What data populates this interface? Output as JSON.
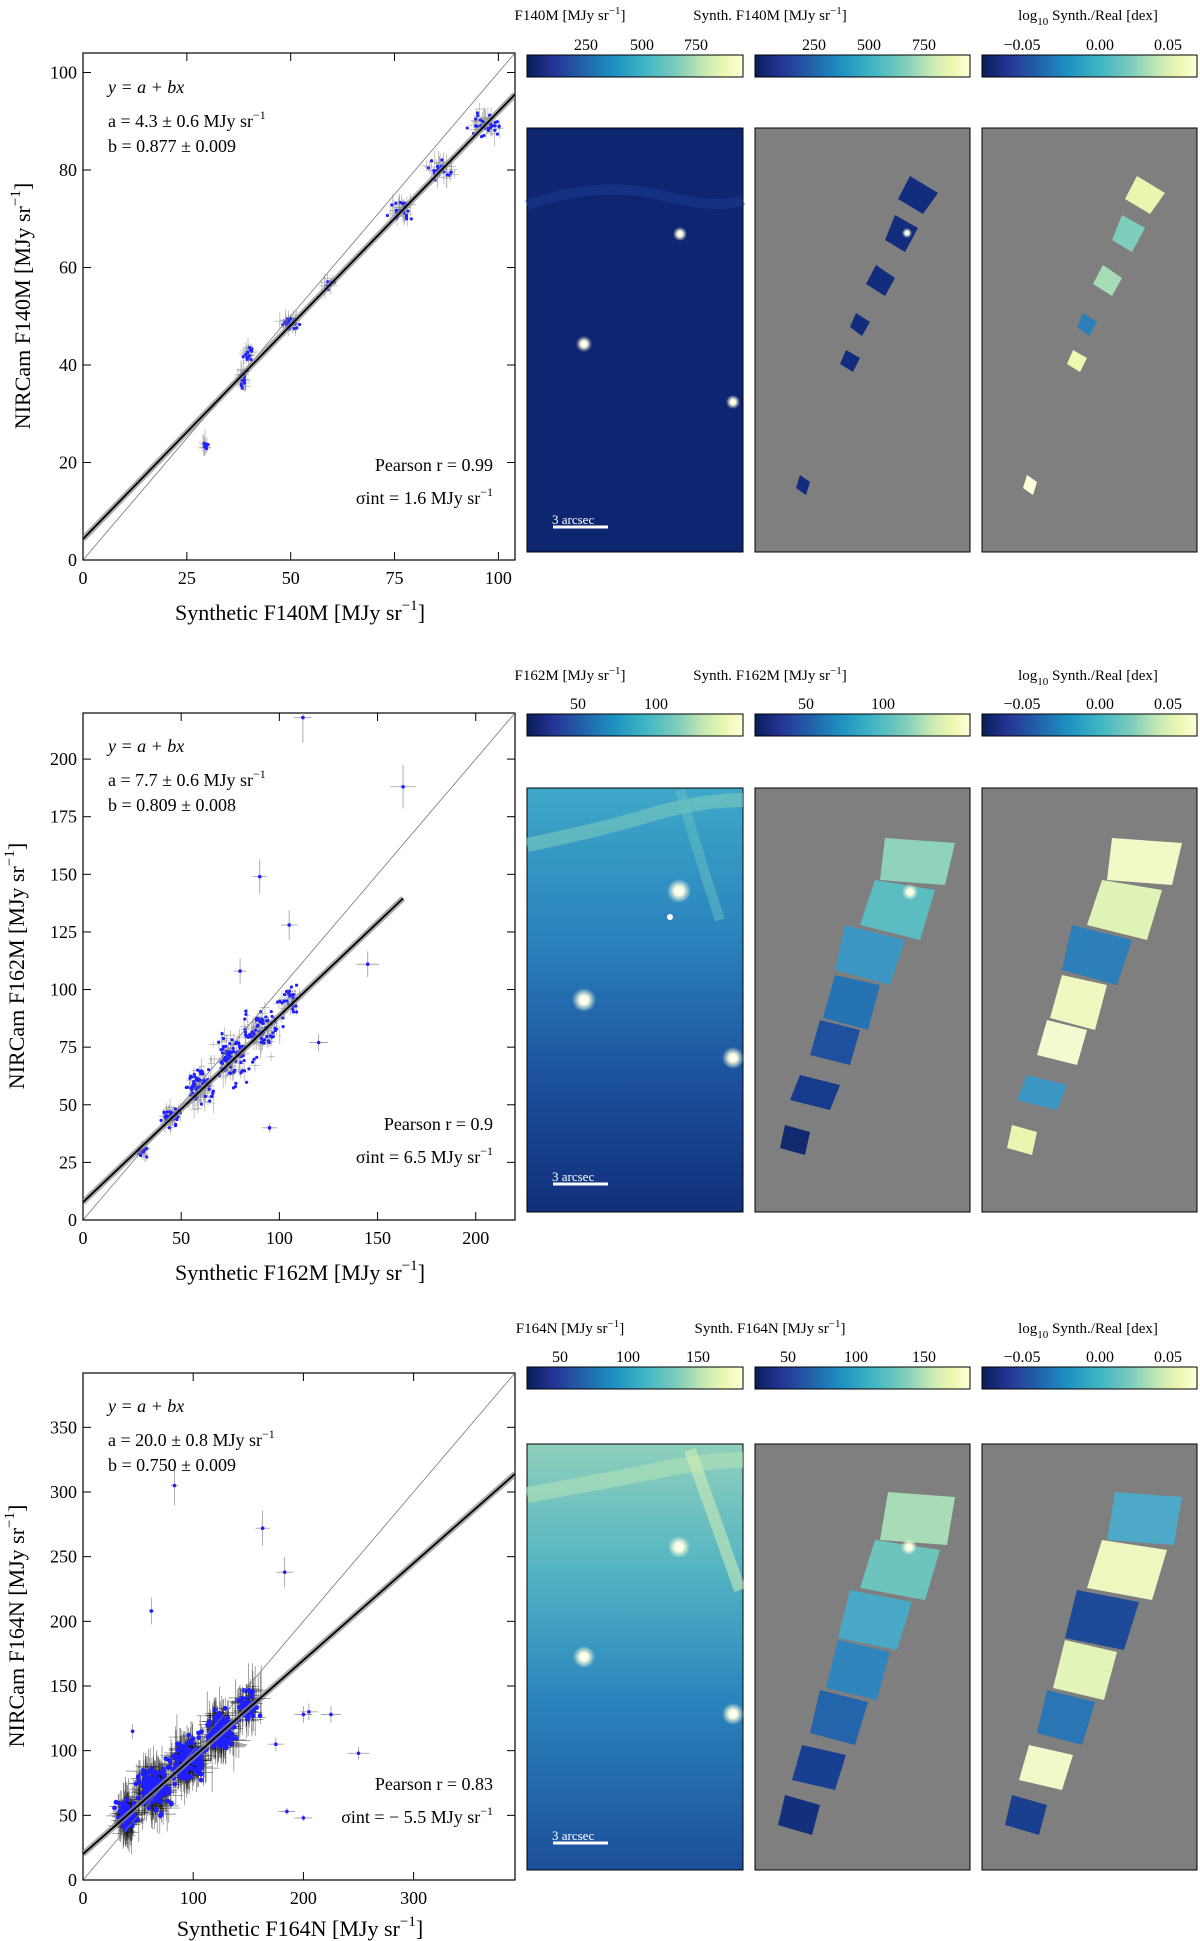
{
  "chart_data": [
    {
      "type": "scatter",
      "filter": "F140M",
      "xlabel": "Synthetic F140M [MJy sr",
      "ylabel": "NIRCam F140M [MJy sr",
      "unit_sup": "−1",
      "xlim": [
        0,
        104
      ],
      "ylim": [
        0,
        104
      ],
      "xticks": [
        0,
        25,
        50,
        75,
        100
      ],
      "yticks": [
        0,
        20,
        40,
        60,
        80,
        100
      ],
      "fit": {
        "model": "y = a + bx",
        "a": 4.3,
        "a_err": 0.6,
        "b": 0.877,
        "b_err": 0.009,
        "a_text": "a = 4.3 ± 0.6 MJy sr",
        "b_text": "b = 0.877 ± 0.009"
      },
      "pearson_r": 0.99,
      "pearson_text": "Pearson r = 0.99",
      "sigma_text": "σint = 1.6 MJy sr",
      "sigma_int": 1.6,
      "clusters": [
        {
          "x": 29.5,
          "y": 23.5,
          "n": 10,
          "sx": 0.6,
          "sy": 0.8
        },
        {
          "x": 38.5,
          "y": 37.0,
          "n": 14,
          "sx": 1.0,
          "sy": 2.0
        },
        {
          "x": 39.5,
          "y": 42.5,
          "n": 14,
          "sx": 1.2,
          "sy": 1.4
        },
        {
          "x": 50.0,
          "y": 48.5,
          "n": 24,
          "sx": 2.0,
          "sy": 1.0
        },
        {
          "x": 59.0,
          "y": 56.5,
          "n": 6,
          "sx": 1.5,
          "sy": 1.0
        },
        {
          "x": 77.0,
          "y": 72.0,
          "n": 22,
          "sx": 3.0,
          "sy": 2.0
        },
        {
          "x": 86.0,
          "y": 80.0,
          "n": 22,
          "sx": 3.0,
          "sy": 2.0
        },
        {
          "x": 97.0,
          "y": 89.5,
          "n": 30,
          "sx": 4.0,
          "sy": 2.5
        }
      ]
    },
    {
      "type": "scatter",
      "filter": "F162M",
      "xlabel": "Synthetic F162M [MJy sr",
      "ylabel": "NIRCam F162M [MJy sr",
      "unit_sup": "−1",
      "xlim": [
        0,
        220
      ],
      "ylim": [
        0,
        220
      ],
      "xticks": [
        0,
        50,
        100,
        150,
        200
      ],
      "yticks": [
        0,
        25,
        50,
        75,
        100,
        125,
        150,
        175,
        200
      ],
      "fit": {
        "model": "y = a + bx",
        "a": 7.7,
        "a_err": 0.6,
        "b": 0.809,
        "b_err": 0.008,
        "a_text": "a = 7.7 ± 0.6 MJy sr",
        "b_text": "b = 0.809 ± 0.008"
      },
      "pearson_r": 0.9,
      "pearson_text": "Pearson r = 0.9",
      "sigma_text": "σint = 6.5 MJy sr",
      "sigma_int": 6.5,
      "clusters": [
        {
          "x": 30,
          "y": 30,
          "n": 12,
          "sx": 3,
          "sy": 2
        },
        {
          "x": 45,
          "y": 45,
          "n": 30,
          "sx": 5,
          "sy": 4
        },
        {
          "x": 60,
          "y": 58,
          "n": 60,
          "sx": 8,
          "sy": 8
        },
        {
          "x": 75,
          "y": 70,
          "n": 80,
          "sx": 9,
          "sy": 10
        },
        {
          "x": 90,
          "y": 82,
          "n": 70,
          "sx": 9,
          "sy": 8
        },
        {
          "x": 105,
          "y": 95,
          "n": 25,
          "sx": 5,
          "sy": 6
        }
      ],
      "outliers": [
        [
          90,
          149
        ],
        [
          105,
          128
        ],
        [
          163,
          188
        ],
        [
          112,
          218
        ],
        [
          145,
          111
        ],
        [
          80,
          108
        ],
        [
          95,
          40
        ],
        [
          120,
          77
        ]
      ]
    },
    {
      "type": "scatter",
      "filter": "F164N",
      "xlabel": "Synthetic F164N [MJy sr",
      "ylabel": "NIRCam F164N [MJy sr",
      "unit_sup": "−1",
      "xlim": [
        0,
        392
      ],
      "ylim": [
        0,
        392
      ],
      "xticks": [
        0,
        100,
        200,
        300
      ],
      "yticks": [
        0,
        50,
        100,
        150,
        200,
        250,
        300,
        350
      ],
      "fit": {
        "model": "y = a + bx",
        "a": 20.0,
        "a_err": 0.8,
        "b": 0.75,
        "b_err": 0.009,
        "a_text": "a = 20.0 ± 0.8 MJy sr",
        "b_text": "b = 0.750 ± 0.009"
      },
      "pearson_r": 0.83,
      "pearson_text": "Pearson r = 0.83",
      "sigma_text": "σint = − 5.5 MJy sr",
      "sigma_int": -5.5,
      "clusters": [
        {
          "x": 40,
          "y": 50,
          "n": 90,
          "sx": 8,
          "sy": 12
        },
        {
          "x": 65,
          "y": 70,
          "n": 150,
          "sx": 14,
          "sy": 16
        },
        {
          "x": 95,
          "y": 92,
          "n": 160,
          "sx": 16,
          "sy": 16
        },
        {
          "x": 125,
          "y": 115,
          "n": 120,
          "sx": 14,
          "sy": 14
        },
        {
          "x": 150,
          "y": 135,
          "n": 50,
          "sx": 10,
          "sy": 12
        }
      ],
      "outliers": [
        [
          83,
          305
        ],
        [
          163,
          272
        ],
        [
          62,
          208
        ],
        [
          183,
          238
        ],
        [
          45,
          115
        ],
        [
          200,
          128
        ],
        [
          225,
          128
        ],
        [
          185,
          53
        ],
        [
          200,
          48
        ],
        [
          250,
          98
        ],
        [
          175,
          105
        ],
        [
          205,
          130
        ]
      ]
    }
  ],
  "maps": [
    {
      "real": {
        "colorbar_label": "F140M [MJy sr",
        "ticks": [
          "250",
          "500",
          "750"
        ]
      },
      "synth": {
        "colorbar_label": "Synth. F140M [MJy sr",
        "ticks": [
          "250",
          "500",
          "750"
        ]
      },
      "ratio": {
        "colorbar_label": "log",
        "colorbar_label_rest": "Synth./Real [dex]",
        "ticks": [
          "−0.05",
          "0.00",
          "0.05"
        ]
      },
      "scalebar": "3 arcsec"
    },
    {
      "real": {
        "colorbar_label": "F162M [MJy sr",
        "ticks": [
          "50",
          "100"
        ]
      },
      "synth": {
        "colorbar_label": "Synth. F162M [MJy sr",
        "ticks": [
          "50",
          "100"
        ]
      },
      "ratio": {
        "colorbar_label": "log",
        "colorbar_label_rest": "Synth./Real [dex]",
        "ticks": [
          "−0.05",
          "0.00",
          "0.05"
        ]
      },
      "scalebar": "3 arcsec"
    },
    {
      "real": {
        "colorbar_label": "F164N [MJy sr",
        "ticks": [
          "50",
          "100",
          "150"
        ]
      },
      "synth": {
        "colorbar_label": "Synth. F164N [MJy sr",
        "ticks": [
          "50",
          "100",
          "150"
        ]
      },
      "ratio": {
        "colorbar_label": "log",
        "colorbar_label_rest": "Synth./Real [dex]",
        "ticks": [
          "−0.05",
          "0.00",
          "0.05"
        ]
      },
      "scalebar": "3 arcsec"
    }
  ],
  "labels": {
    "log_sub": "10",
    "unit_sup": "−1"
  },
  "colors": {
    "points": "#1f1fff",
    "errorbar_dark": "#111111",
    "fit_band": "#8a8a8a",
    "map_gray": "#7f7f7f",
    "cmap": [
      "#081d58",
      "#253494",
      "#225ea8",
      "#1d91c0",
      "#41b6c4",
      "#7fcdbb",
      "#c7e9b4",
      "#edf8b1",
      "#ffffd9"
    ]
  }
}
